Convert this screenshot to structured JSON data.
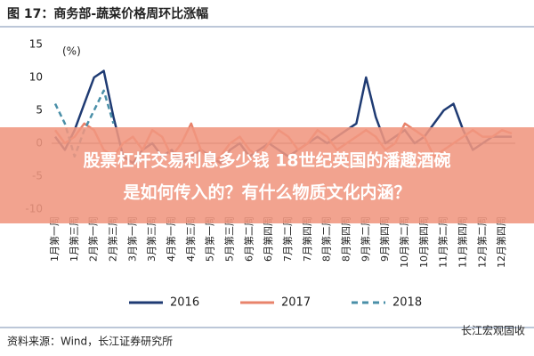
{
  "chart_data": {
    "type": "line",
    "title": "图 17：商务部-蔬菜价格周环比涨幅",
    "y_label": "(%)",
    "categories": [
      "1月第一周",
      null,
      "1月第三周",
      null,
      "2月第一周",
      null,
      "2月第三周",
      null,
      "3月第一周",
      null,
      "3月第三周",
      null,
      "4月第一周",
      null,
      "4月第三周",
      null,
      "5月第一周",
      null,
      "5月第三周",
      null,
      "6月第二周",
      null,
      "6月第四周",
      null,
      "7月第二周",
      null,
      "7月第四周",
      null,
      "8月第二周",
      null,
      "8月第四周",
      null,
      "9月第二周",
      null,
      "9月第四周",
      null,
      "10月第二周",
      null,
      "10月第四周",
      null,
      "11月第二周",
      null,
      "11月第四周",
      null,
      "12月第二周",
      null,
      "12月第四周",
      null
    ],
    "series": [
      {
        "name": "2016",
        "color": "#1f3b73",
        "dashed": false,
        "values": [
          1,
          -1,
          2,
          6,
          10,
          11,
          4,
          -2,
          -3,
          -1,
          0,
          -2,
          -1,
          -3,
          -2,
          -1,
          -2,
          -3,
          -1,
          0,
          -2,
          -1,
          0,
          -1,
          -2,
          -1,
          0,
          1,
          0,
          1,
          2,
          3,
          10,
          4,
          0,
          1,
          2,
          0,
          1,
          3,
          5,
          6,
          2,
          -1,
          0,
          1,
          1,
          1
        ]
      },
      {
        "name": "2017",
        "color": "#e8836b",
        "dashed": false,
        "values": [
          2,
          0,
          1,
          3,
          2,
          -1,
          -2,
          0,
          1,
          -1,
          2,
          1,
          -2,
          0,
          3,
          -1,
          -3,
          -2,
          0,
          1,
          -1,
          -2,
          0,
          2,
          1,
          -1,
          0,
          2,
          1,
          -1,
          0,
          1,
          2,
          1,
          -1,
          0,
          3,
          2,
          1,
          -2,
          -1,
          0,
          1,
          2,
          1,
          1,
          2,
          1.5
        ]
      },
      {
        "name": "2018",
        "color": "#4a8fa8",
        "dashed": true,
        "values": [
          6,
          3,
          -2,
          2,
          5,
          8,
          3,
          null,
          null,
          null,
          null,
          null,
          null,
          null,
          null,
          null,
          null,
          null,
          null,
          null,
          null,
          null,
          null,
          null,
          null,
          null,
          null,
          null,
          null,
          null,
          null,
          null,
          null,
          null,
          null,
          null,
          null,
          null,
          null,
          null,
          null,
          null,
          null,
          null,
          null,
          null,
          null,
          null
        ]
      }
    ],
    "ylim": [
      -10,
      15
    ],
    "yticks": [
      15,
      10,
      5,
      0,
      -5,
      -10
    ]
  },
  "source": "资料来源：Wind，长江证券研究所",
  "watermark": "长江宏观固收",
  "banner": [
    "股票杠杆交易利息多少钱 18世纪英国的潘趣酒碗",
    "是如何传入的？有什么物质文化内涵？"
  ]
}
